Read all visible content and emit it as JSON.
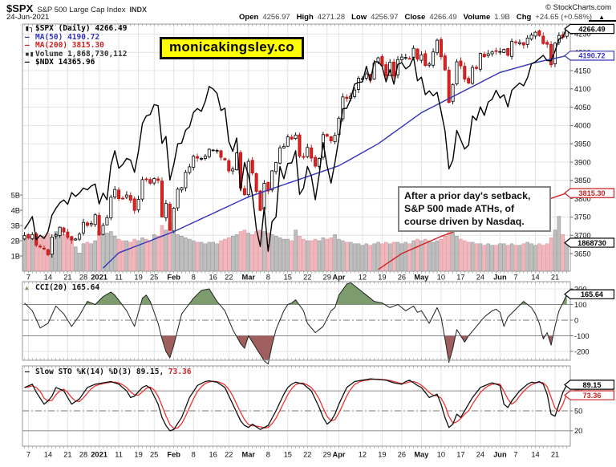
{
  "header": {
    "symbol": "$SPX",
    "name": "S&P 500 Large Cap Index",
    "exchange": "INDX",
    "copyright": "© StockCharts.com",
    "date": "24-Jun-2021",
    "quote": [
      {
        "l": "Open",
        "v": "4256.97"
      },
      {
        "l": "High",
        "v": "4271.28"
      },
      {
        "l": "Low",
        "v": "4256.97"
      },
      {
        "l": "Close",
        "v": "4266.49"
      },
      {
        "l": "Volume",
        "v": "1.9B"
      },
      {
        "l": "Chg",
        "v": "+24.65 (+0.58%)"
      }
    ],
    "direction": "▲"
  },
  "watermark": "monicakingsley.co",
  "annotation": {
    "lines": [
      "After a prior day's setback,",
      "S&P 500 made ATHs, of",
      "course driven by Nasdaq."
    ]
  },
  "main_legend": [
    {
      "label": "$SPX (Daily)",
      "value": "4266.49"
    },
    {
      "label": "MA(50)",
      "value": "4190.72"
    },
    {
      "label": "MA(200)",
      "value": "3815.30"
    },
    {
      "label": "Volume",
      "value": "1,868,730,112"
    },
    {
      "label": "$NDX",
      "value": "14365.96"
    }
  ],
  "cci_legend": {
    "label": "CCI(20)",
    "value": "165.64"
  },
  "sto_legend": {
    "label": "Slow STO %K(14) %D(3)",
    "k": "89.15,",
    "d": "73.36"
  },
  "price_tags": [
    {
      "panel": "main",
      "value": 4266.49,
      "text": "4266.49",
      "color": "#000000"
    },
    {
      "panel": "main",
      "value": 4190.72,
      "text": "4190.72",
      "color": "#3333bb"
    },
    {
      "panel": "main",
      "value": 3815.3,
      "text": "3815.30",
      "color": "#cc2222"
    },
    {
      "panel": "vol",
      "value": 1.87,
      "text": "1868730",
      "color": "#000000"
    },
    {
      "panel": "cci",
      "value": 165.64,
      "text": "165.64",
      "color": "#000000"
    },
    {
      "panel": "sto",
      "value": 89.15,
      "text": "89.15",
      "color": "#000000"
    },
    {
      "panel": "sto",
      "value": 73.36,
      "text": "73.36",
      "color": "#cc2222"
    }
  ],
  "axes": {
    "price_ticks": [
      3650,
      3700,
      3750,
      3800,
      3850,
      3900,
      3950,
      4000,
      4050,
      4100,
      4150,
      4200,
      4250
    ],
    "volume_ticks": [
      {
        "t": "5B",
        "v": 5
      },
      {
        "t": "4B",
        "v": 4
      },
      {
        "t": "3B",
        "v": 3
      },
      {
        "t": "2B",
        "v": 2
      },
      {
        "t": "1B",
        "v": 1
      }
    ],
    "cci_ticks": [
      {
        "t": "200",
        "v": 200
      },
      {
        "t": "100",
        "v": 100
      },
      {
        "t": "0",
        "v": 0
      },
      {
        "t": "-100",
        "v": -100
      },
      {
        "t": "-200",
        "v": -200
      }
    ],
    "sto_ticks": [
      {
        "t": "80",
        "v": 80
      },
      {
        "t": "50",
        "v": 50
      },
      {
        "t": "20",
        "v": 20
      }
    ],
    "x_labels": [
      {
        "t": "7",
        "d": 1
      },
      {
        "t": "14",
        "d": 6
      },
      {
        "t": "21",
        "d": 11
      },
      {
        "t": "28",
        "d": 15
      },
      {
        "t": "2021",
        "d": 19,
        "b": 1
      },
      {
        "t": "11",
        "d": 24
      },
      {
        "t": "19",
        "d": 29
      },
      {
        "t": "25",
        "d": 33
      },
      {
        "t": "Feb",
        "d": 38,
        "b": 1
      },
      {
        "t": "8",
        "d": 43
      },
      {
        "t": "16",
        "d": 48
      },
      {
        "t": "22",
        "d": 52
      },
      {
        "t": "Mar",
        "d": 57,
        "b": 1
      },
      {
        "t": "8",
        "d": 62
      },
      {
        "t": "15",
        "d": 67
      },
      {
        "t": "22",
        "d": 72
      },
      {
        "t": "29",
        "d": 77
      },
      {
        "t": "Apr",
        "d": 80,
        "b": 1
      },
      {
        "t": "12",
        "d": 86
      },
      {
        "t": "19",
        "d": 91
      },
      {
        "t": "26",
        "d": 96
      },
      {
        "t": "May",
        "d": 101,
        "b": 1
      },
      {
        "t": "10",
        "d": 106
      },
      {
        "t": "17",
        "d": 111
      },
      {
        "t": "24",
        "d": 116
      },
      {
        "t": "Jun",
        "d": 121,
        "b": 1
      },
      {
        "t": "7",
        "d": 125
      },
      {
        "t": "14",
        "d": 130
      },
      {
        "t": "21",
        "d": 135
      }
    ]
  },
  "chart_data": {
    "type": "candlestick",
    "title": "$SPX (Daily)",
    "period": "Dec 2020 - 24 Jun 2021",
    "ylim": [
      3650,
      4280
    ],
    "closes": [
      3699,
      3692,
      3702,
      3673,
      3668,
      3663,
      3647,
      3695,
      3701,
      3722,
      3709,
      3695,
      3687,
      3690,
      3703,
      3735,
      3727,
      3732,
      3756,
      3701,
      3727,
      3748,
      3804,
      3825,
      3800,
      3801,
      3810,
      3796,
      3768,
      3798,
      3852,
      3853,
      3842,
      3855,
      3850,
      3750,
      3787,
      3714,
      3774,
      3826,
      3830,
      3872,
      3887,
      3916,
      3911,
      3910,
      3916,
      3935,
      3933,
      3932,
      3913,
      3906,
      3876,
      3881,
      3925,
      3829,
      3811,
      3902,
      3870,
      3820,
      3768,
      3842,
      3821,
      3876,
      3899,
      3939,
      3943,
      3969,
      3963,
      3974,
      3916,
      3913,
      3940,
      3911,
      3889,
      3910,
      3975,
      3971,
      3958,
      3973,
      4020,
      4078,
      4074,
      4080,
      4097,
      4129,
      4128,
      4141,
      4124,
      4170,
      4185,
      4163,
      4135,
      4173,
      4135,
      4180,
      4187,
      4186,
      4183,
      4211,
      4181,
      4193,
      4164,
      4168,
      4201,
      4233,
      4188,
      4152,
      4063,
      4112,
      4174,
      4163,
      4127,
      4116,
      4159,
      4156,
      4197,
      4188,
      4196,
      4201,
      4204,
      4202,
      4208,
      4192,
      4230,
      4227,
      4227,
      4220,
      4239,
      4247,
      4255,
      4246,
      4224,
      4222,
      4166,
      4225,
      4246,
      4241,
      4266.49
    ],
    "ndx": [
      12464,
      12519,
      12582,
      12364,
      12405,
      12375,
      12440,
      12595,
      12658,
      12711,
      12738,
      12697,
      12807,
      12771,
      12804,
      12850,
      12833,
      12870,
      12888,
      12699,
      12803,
      12740,
      13067,
      13202,
      13036,
      13072,
      13129,
      13113,
      12998,
      13197,
      13457,
      13530,
      13543,
      13636,
      13626,
      13270,
      13337,
      12926,
      13073,
      13267,
      13274,
      13394,
      13428,
      13562,
      13599,
      13573,
      13666,
      13807,
      13783,
      13742,
      13580,
      13603,
      13287,
      13195,
      13322,
      12828,
      13091,
      12967,
      12784,
      12464,
      12299,
      12668,
      12253,
      12535,
      12578,
      13053,
      12937,
      13082,
      13087,
      13202,
      12790,
      12850,
      13053,
      12962,
      12740,
      12979,
      13278,
      13059,
      12896,
      13091,
      13320,
      13598,
      13601,
      13688,
      13829,
      13845,
      13850,
      13996,
      13857,
      14041,
      14038,
      13997,
      13850,
      13966,
      13829,
      14016,
      14031,
      13973,
      14000,
      14083,
      13860,
      13895,
      13730,
      13766,
      13719,
      13752,
      13574,
      13389,
      13031,
      13113,
      13393,
      13304,
      13218,
      13254,
      13529,
      13489,
      13615,
      13535,
      13660,
      13686,
      13771,
      13699,
      13729,
      13614,
      13770,
      13806,
      13839,
      13813,
      13890,
      14020,
      14039,
      14070,
      14100,
      14050,
      14049,
      14141,
      14253,
      14271,
      14366
    ],
    "ndx_scale": {
      "ndx_min": 12250,
      "ndx_max": 14370,
      "price_min": 3655,
      "price_max": 4270
    },
    "volumes": [
      2.2,
      2.1,
      2.3,
      2.4,
      2.2,
      2.3,
      2.5,
      2.2,
      2.6,
      2.9,
      2.4,
      2.2,
      2.1,
      1.6,
      1.2,
      1.8,
      1.9,
      1.8,
      2.0,
      2.6,
      2.4,
      2.5,
      2.6,
      2.3,
      2.1,
      2.0,
      2.0,
      1.9,
      2.1,
      2.0,
      2.2,
      2.1,
      2.0,
      2.4,
      2.3,
      3.0,
      2.7,
      3.2,
      2.6,
      2.4,
      2.3,
      2.2,
      2.1,
      2.0,
      1.9,
      1.9,
      1.8,
      1.9,
      1.9,
      1.8,
      2.0,
      2.1,
      2.2,
      2.3,
      2.4,
      2.6,
      2.7,
      2.5,
      2.4,
      2.6,
      2.7,
      2.6,
      2.5,
      2.4,
      2.3,
      2.2,
      2.1,
      2.1,
      2.0,
      2.7,
      2.3,
      2.1,
      2.0,
      2.0,
      2.1,
      2.0,
      2.2,
      2.1,
      2.2,
      2.4,
      2.1,
      2.0,
      1.9,
      1.9,
      1.8,
      1.8,
      1.7,
      1.8,
      1.7,
      1.8,
      1.9,
      1.8,
      1.9,
      1.8,
      1.9,
      1.9,
      1.8,
      1.9,
      1.8,
      2.0,
      2.1,
      2.0,
      2.1,
      2.0,
      1.9,
      2.0,
      2.1,
      2.3,
      2.8,
      2.5,
      2.3,
      2.1,
      2.0,
      1.9,
      1.9,
      1.8,
      1.8,
      1.7,
      1.8,
      1.7,
      1.7,
      1.8,
      1.8,
      1.7,
      1.8,
      1.7,
      1.7,
      1.8,
      1.9,
      1.8,
      1.7,
      1.8,
      1.7,
      1.8,
      2.2,
      2.7,
      3.6,
      2.4,
      1.87
    ],
    "ma50_waypoints": [
      [
        19,
        3600
      ],
      [
        24,
        3652
      ],
      [
        38,
        3710
      ],
      [
        57,
        3805
      ],
      [
        80,
        3890
      ],
      [
        90,
        3950
      ],
      [
        101,
        4035
      ],
      [
        111,
        4090
      ],
      [
        121,
        4145
      ],
      [
        130,
        4172
      ],
      [
        138,
        4190.72
      ]
    ],
    "ma200_waypoints": [
      [
        88,
        3592
      ],
      [
        96,
        3650
      ],
      [
        106,
        3697
      ],
      [
        121,
        3754
      ],
      [
        138,
        3815.3
      ]
    ],
    "cci_waypoints": [
      [
        0,
        110
      ],
      [
        2,
        60
      ],
      [
        4,
        -50
      ],
      [
        6,
        -20
      ],
      [
        8,
        90
      ],
      [
        10,
        40
      ],
      [
        12,
        -40
      ],
      [
        14,
        30
      ],
      [
        16,
        120
      ],
      [
        18,
        100
      ],
      [
        20,
        150
      ],
      [
        22,
        180
      ],
      [
        23,
        160
      ],
      [
        26,
        60
      ],
      [
        28,
        -40
      ],
      [
        30,
        140
      ],
      [
        31,
        160
      ],
      [
        32,
        120
      ],
      [
        34,
        -20
      ],
      [
        35,
        -120
      ],
      [
        36,
        -200
      ],
      [
        37,
        -240
      ],
      [
        38,
        -160
      ],
      [
        40,
        40
      ],
      [
        43,
        140
      ],
      [
        45,
        190
      ],
      [
        47,
        200
      ],
      [
        49,
        120
      ],
      [
        51,
        60
      ],
      [
        53,
        -60
      ],
      [
        55,
        -150
      ],
      [
        56,
        -180
      ],
      [
        57,
        -100
      ],
      [
        58,
        -140
      ],
      [
        60,
        -220
      ],
      [
        61,
        -260
      ],
      [
        62,
        -280
      ],
      [
        63,
        -160
      ],
      [
        64,
        -60
      ],
      [
        66,
        60
      ],
      [
        67,
        100
      ],
      [
        68,
        110
      ],
      [
        69,
        130
      ],
      [
        71,
        60
      ],
      [
        72,
        -20
      ],
      [
        74,
        -80
      ],
      [
        76,
        -40
      ],
      [
        78,
        60
      ],
      [
        79,
        80
      ],
      [
        80,
        160
      ],
      [
        82,
        230
      ],
      [
        83,
        240
      ],
      [
        85,
        200
      ],
      [
        87,
        160
      ],
      [
        89,
        120
      ],
      [
        91,
        110
      ],
      [
        93,
        80
      ],
      [
        95,
        100
      ],
      [
        97,
        60
      ],
      [
        99,
        90
      ],
      [
        100,
        50
      ],
      [
        101,
        60
      ],
      [
        103,
        -20
      ],
      [
        105,
        80
      ],
      [
        106,
        20
      ],
      [
        107,
        -120
      ],
      [
        108,
        -270
      ],
      [
        109,
        -180
      ],
      [
        110,
        -60
      ],
      [
        112,
        -140
      ],
      [
        113,
        -100
      ],
      [
        115,
        -40
      ],
      [
        117,
        20
      ],
      [
        119,
        60
      ],
      [
        120,
        70
      ],
      [
        121,
        50
      ],
      [
        122,
        -40
      ],
      [
        123,
        20
      ],
      [
        125,
        70
      ],
      [
        127,
        120
      ],
      [
        128,
        100
      ],
      [
        129,
        80
      ],
      [
        130,
        40
      ],
      [
        131,
        -20
      ],
      [
        132,
        -120
      ],
      [
        133,
        -80
      ],
      [
        134,
        -160
      ],
      [
        135,
        -40
      ],
      [
        136,
        60
      ],
      [
        137,
        110
      ],
      [
        138,
        165.64
      ]
    ],
    "stoK_waypoints": [
      [
        0,
        85
      ],
      [
        2,
        90
      ],
      [
        3,
        78
      ],
      [
        5,
        60
      ],
      [
        6,
        65
      ],
      [
        7,
        72
      ],
      [
        8,
        85
      ],
      [
        10,
        80
      ],
      [
        12,
        60
      ],
      [
        14,
        68
      ],
      [
        16,
        85
      ],
      [
        18,
        90
      ],
      [
        20,
        92
      ],
      [
        22,
        94
      ],
      [
        24,
        90
      ],
      [
        26,
        80
      ],
      [
        27,
        70
      ],
      [
        28,
        72
      ],
      [
        30,
        85
      ],
      [
        31,
        88
      ],
      [
        32,
        84
      ],
      [
        34,
        60
      ],
      [
        35,
        40
      ],
      [
        36,
        28
      ],
      [
        37,
        20
      ],
      [
        38,
        22
      ],
      [
        40,
        40
      ],
      [
        42,
        70
      ],
      [
        44,
        88
      ],
      [
        46,
        94
      ],
      [
        47,
        95
      ],
      [
        49,
        93
      ],
      [
        51,
        85
      ],
      [
        53,
        60
      ],
      [
        55,
        35
      ],
      [
        56,
        28
      ],
      [
        57,
        25
      ],
      [
        58,
        30
      ],
      [
        60,
        22
      ],
      [
        62,
        28
      ],
      [
        64,
        50
      ],
      [
        66,
        75
      ],
      [
        67,
        85
      ],
      [
        68,
        90
      ],
      [
        69,
        93
      ],
      [
        71,
        90
      ],
      [
        73,
        80
      ],
      [
        75,
        55
      ],
      [
        76,
        40
      ],
      [
        77,
        30
      ],
      [
        78,
        35
      ],
      [
        79,
        45
      ],
      [
        80,
        60
      ],
      [
        82,
        85
      ],
      [
        84,
        94
      ],
      [
        86,
        96
      ],
      [
        88,
        98
      ],
      [
        90,
        97
      ],
      [
        92,
        96
      ],
      [
        94,
        92
      ],
      [
        96,
        90
      ],
      [
        97,
        94
      ],
      [
        98,
        96
      ],
      [
        100,
        88
      ],
      [
        101,
        85
      ],
      [
        103,
        70
      ],
      [
        105,
        75
      ],
      [
        106,
        60
      ],
      [
        107,
        40
      ],
      [
        108,
        25
      ],
      [
        109,
        30
      ],
      [
        110,
        45
      ],
      [
        111,
        40
      ],
      [
        112,
        50
      ],
      [
        114,
        70
      ],
      [
        116,
        85
      ],
      [
        118,
        90
      ],
      [
        119,
        92
      ],
      [
        120,
        90
      ],
      [
        121,
        88
      ],
      [
        122,
        60
      ],
      [
        123,
        55
      ],
      [
        124,
        65
      ],
      [
        126,
        80
      ],
      [
        128,
        90
      ],
      [
        129,
        93
      ],
      [
        130,
        92
      ],
      [
        131,
        94
      ],
      [
        132,
        90
      ],
      [
        133,
        75
      ],
      [
        134,
        45
      ],
      [
        135,
        42
      ],
      [
        136,
        60
      ],
      [
        137,
        78
      ],
      [
        138,
        89.15
      ]
    ]
  },
  "colors": {
    "up_candle": "#ffffff",
    "up_stroke": "#000000",
    "down_candle": "#dd2222",
    "down_stroke": "#bb1111",
    "vol_up": "#b4b4b4",
    "vol_up_stroke": "#8c8c8c",
    "vol_down": "#f0aab2",
    "vol_down_stroke": "#dd8890",
    "ma50": "#3333bb",
    "ma200": "#cc2222",
    "ndx": "#000000",
    "cci_line": "#222222",
    "cci_pos": "#7d9c6e",
    "cci_neg": "#a05f5f",
    "sto_k": "#111111",
    "sto_d": "#ee3333",
    "grid": "#e4e4e4",
    "panel_border": "#999999",
    "ref_line": "#888888",
    "watermark_bg": "#ffff00"
  }
}
